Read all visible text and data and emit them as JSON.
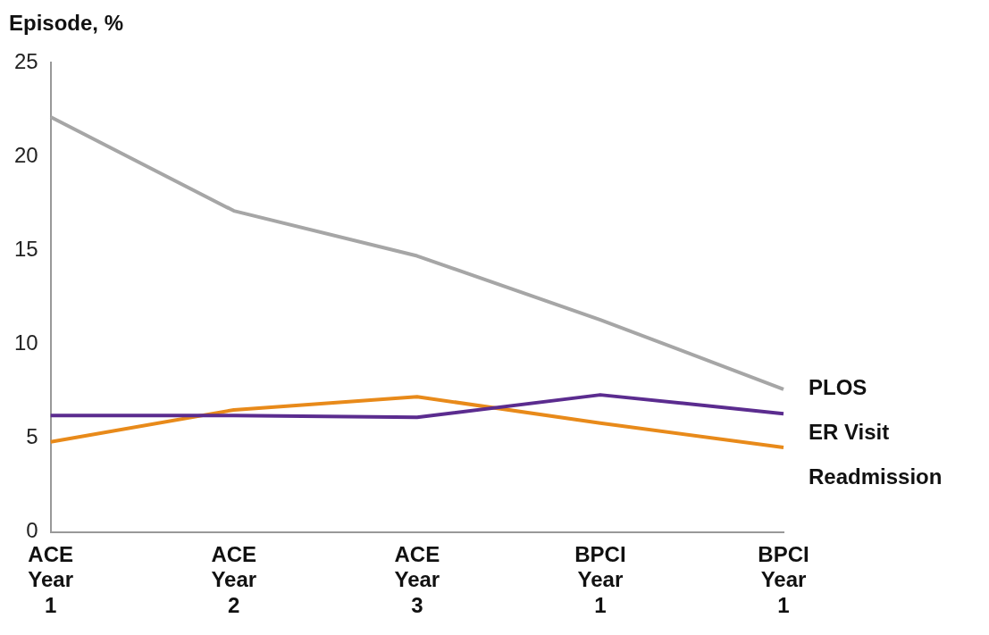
{
  "chart_data": {
    "type": "line",
    "ylabel": "Episode, %",
    "categories": [
      "ACE Year 1",
      "ACE Year 2",
      "ACE Year 3",
      "BPCI Year 1",
      "BPCI Year 1"
    ],
    "series": [
      {
        "name": "PLOS",
        "color": "#a6a6a6",
        "values": [
          22.1,
          17.1,
          14.7,
          11.3,
          7.6
        ]
      },
      {
        "name": "ER Visit",
        "color": "#5b2c8f",
        "values": [
          6.2,
          6.2,
          6.1,
          7.3,
          6.3
        ]
      },
      {
        "name": "Readmission",
        "color": "#e88a1a",
        "values": [
          4.8,
          6.5,
          7.2,
          5.8,
          4.5
        ]
      }
    ],
    "ylim": [
      0,
      25
    ],
    "yticks": [
      0,
      5,
      10,
      15,
      20,
      25
    ],
    "grid": false,
    "legend": false,
    "marker": "none",
    "line_style": "solid"
  }
}
